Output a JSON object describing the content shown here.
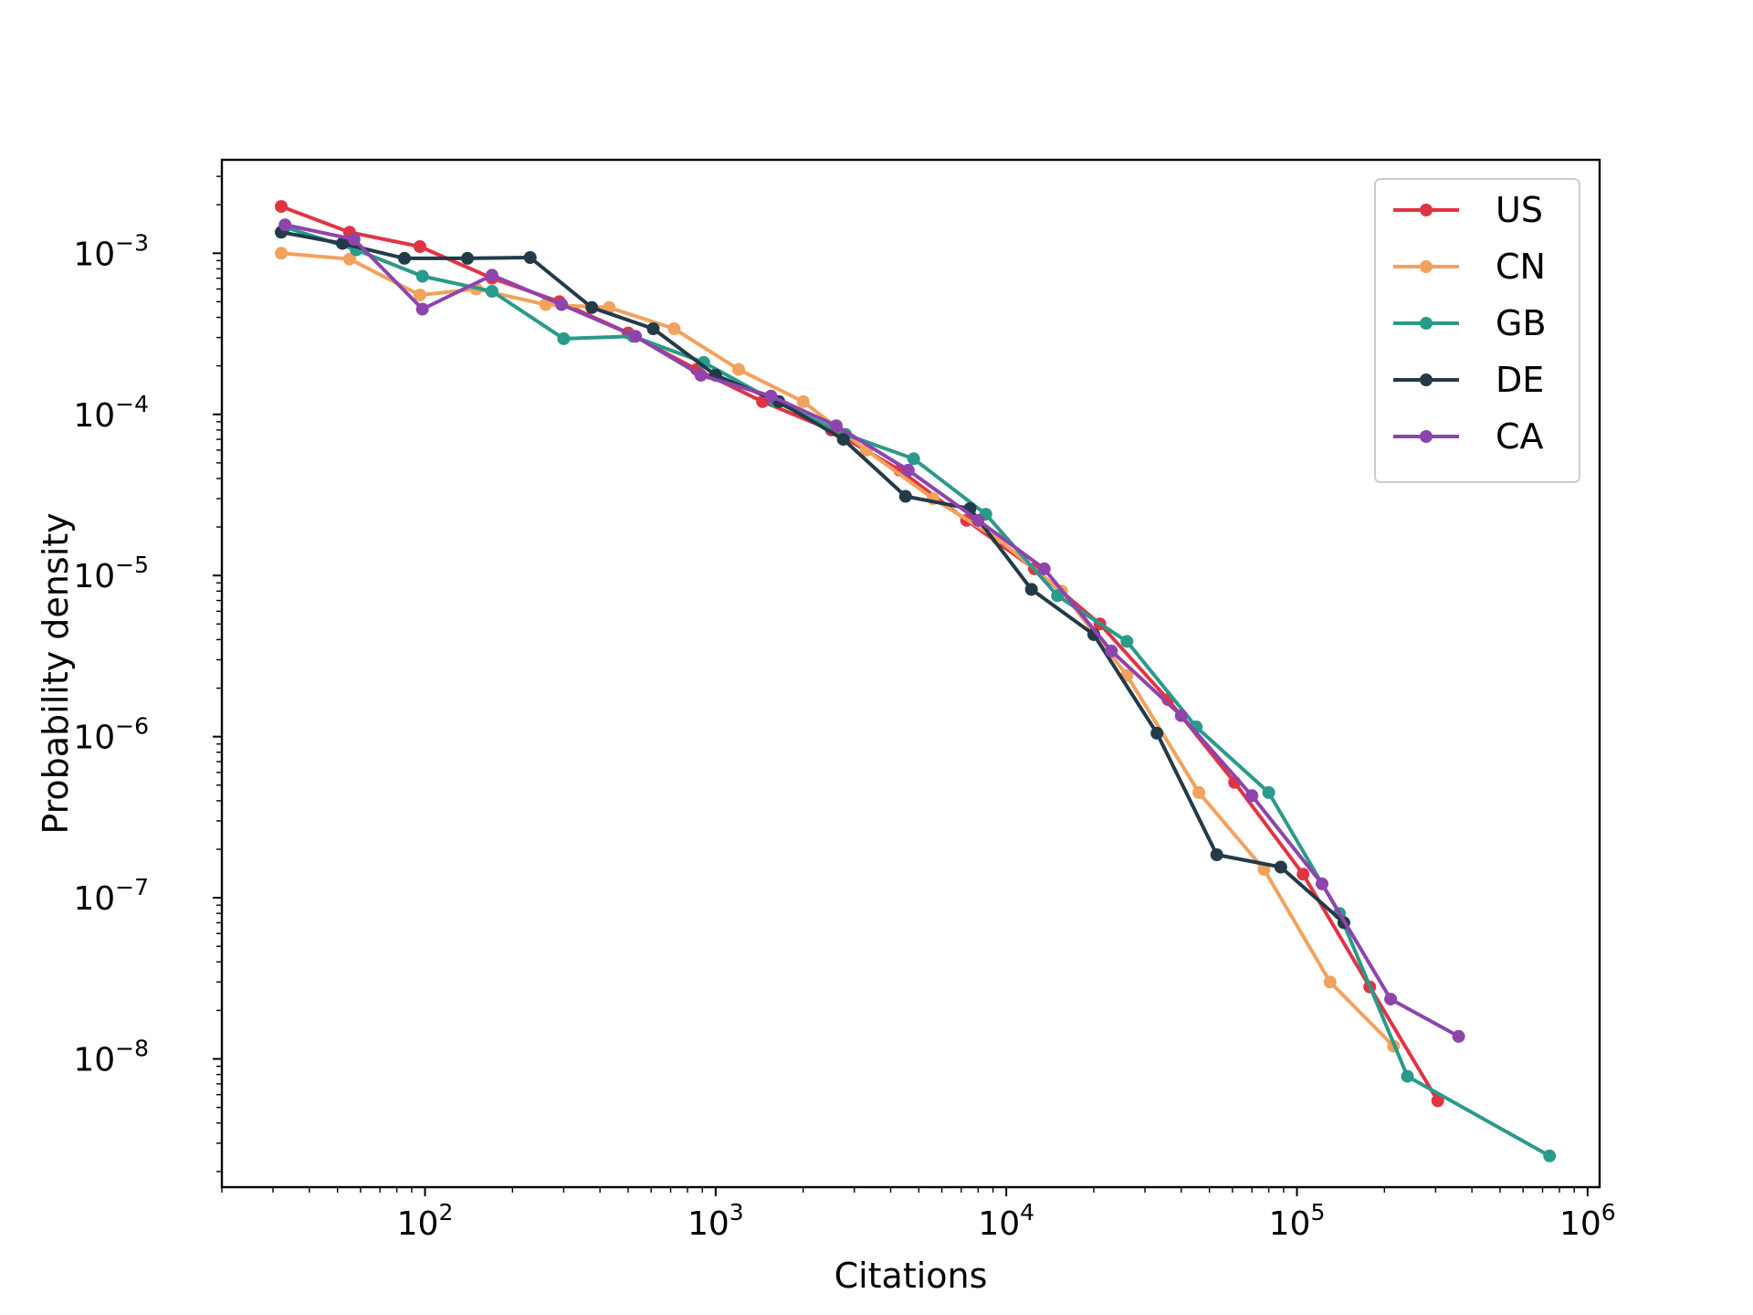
{
  "chart_data": {
    "type": "line",
    "title": "",
    "xlabel": "Citations",
    "ylabel": "Probability density",
    "xscale": "log",
    "yscale": "log",
    "xlim": [
      20,
      1100000
    ],
    "ylim": [
      1.6e-09,
      0.0038
    ],
    "x_ticks": [
      {
        "value": 100,
        "base": "10",
        "exp": "2"
      },
      {
        "value": 1000,
        "base": "10",
        "exp": "3"
      },
      {
        "value": 10000,
        "base": "10",
        "exp": "4"
      },
      {
        "value": 100000,
        "base": "10",
        "exp": "5"
      },
      {
        "value": 1000000,
        "base": "10",
        "exp": "6"
      }
    ],
    "y_ticks": [
      {
        "value": 0.001,
        "base": "10",
        "exp": "−3"
      },
      {
        "value": 0.0001,
        "base": "10",
        "exp": "−4"
      },
      {
        "value": 1e-05,
        "base": "10",
        "exp": "−5"
      },
      {
        "value": 1e-06,
        "base": "10",
        "exp": "−6"
      },
      {
        "value": 1e-07,
        "base": "10",
        "exp": "−7"
      },
      {
        "value": 1e-08,
        "base": "10",
        "exp": "−8"
      }
    ],
    "grid": false,
    "legend_position": "top-right",
    "series": [
      {
        "name": "US",
        "color": "#e03444",
        "points": [
          [
            32,
            0.00195
          ],
          [
            55,
            0.00135
          ],
          [
            96,
            0.0011
          ],
          [
            170,
            0.0007
          ],
          [
            290,
            0.0005
          ],
          [
            500,
            0.00032
          ],
          [
            860,
            0.00019
          ],
          [
            1450,
            0.00012
          ],
          [
            2500,
            8e-05
          ],
          [
            4300,
            4.5e-05
          ],
          [
            7300,
            2.2e-05
          ],
          [
            12500,
            1.1e-05
          ],
          [
            21000,
            5e-06
          ],
          [
            36000,
            1.7e-06
          ],
          [
            61000,
            5.2e-07
          ],
          [
            105000,
            1.4e-07
          ],
          [
            178000,
            2.8e-08
          ],
          [
            305000,
            5.5e-09
          ]
        ]
      },
      {
        "name": "CN",
        "color": "#f2a25c",
        "points": [
          [
            32,
            0.001
          ],
          [
            55,
            0.00092
          ],
          [
            96,
            0.00055
          ],
          [
            150,
            0.0006
          ],
          [
            260,
            0.00048
          ],
          [
            430,
            0.00046
          ],
          [
            720,
            0.00034
          ],
          [
            1200,
            0.00019
          ],
          [
            2000,
            0.00012
          ],
          [
            3300,
            6e-05
          ],
          [
            5600,
            3e-05
          ],
          [
            9300,
            1.7e-05
          ],
          [
            15500,
            8e-06
          ],
          [
            26000,
            2.4e-06
          ],
          [
            46000,
            4.5e-07
          ],
          [
            77000,
            1.5e-07
          ],
          [
            130000,
            3e-08
          ],
          [
            215000,
            1.2e-08
          ]
        ]
      },
      {
        "name": "GB",
        "color": "#2a9a8a",
        "points": [
          [
            33,
            0.00145
          ],
          [
            58,
            0.00105
          ],
          [
            98,
            0.00072
          ],
          [
            170,
            0.00058
          ],
          [
            300,
            0.000295
          ],
          [
            520,
            0.000305
          ],
          [
            910,
            0.00021
          ],
          [
            1600,
            0.00012
          ],
          [
            2800,
            7.5e-05
          ],
          [
            4800,
            5.3e-05
          ],
          [
            8500,
            2.4e-05
          ],
          [
            15000,
            7.5e-06
          ],
          [
            26000,
            3.9e-06
          ],
          [
            45000,
            1.15e-06
          ],
          [
            80000,
            4.5e-07
          ],
          [
            140000,
            8e-08
          ],
          [
            240000,
            7.8e-09
          ],
          [
            740000,
            2.5e-09
          ]
        ]
      },
      {
        "name": "DE",
        "color": "#233a49",
        "points": [
          [
            32,
            0.00135
          ],
          [
            52,
            0.00115
          ],
          [
            85,
            0.00093
          ],
          [
            140,
            0.00093
          ],
          [
            230,
            0.00094
          ],
          [
            375,
            0.00046
          ],
          [
            610,
            0.00034
          ],
          [
            1000,
            0.000175
          ],
          [
            1650,
            0.00012
          ],
          [
            2750,
            7e-05
          ],
          [
            4500,
            3.1e-05
          ],
          [
            7500,
            2.6e-05
          ],
          [
            12200,
            8.2e-06
          ],
          [
            20000,
            4.3e-06
          ],
          [
            33000,
            1.05e-06
          ],
          [
            53000,
            1.85e-07
          ],
          [
            88000,
            1.55e-07
          ],
          [
            145000,
            7e-08
          ]
        ]
      },
      {
        "name": "CA",
        "color": "#8e44ad",
        "points": [
          [
            33,
            0.0015
          ],
          [
            57,
            0.00122
          ],
          [
            98,
            0.00045
          ],
          [
            170,
            0.00073
          ],
          [
            295,
            0.00048
          ],
          [
            530,
            0.000305
          ],
          [
            890,
            0.000175
          ],
          [
            1550,
            0.00013
          ],
          [
            2600,
            8.5e-05
          ],
          [
            4600,
            4.5e-05
          ],
          [
            8000,
            2.2e-05
          ],
          [
            13500,
            1.1e-05
          ],
          [
            23000,
            3.4e-06
          ],
          [
            40000,
            1.35e-06
          ],
          [
            70000,
            4.3e-07
          ],
          [
            122000,
            1.22e-07
          ],
          [
            210000,
            2.35e-08
          ],
          [
            360000,
            1.38e-08
          ]
        ]
      }
    ]
  }
}
